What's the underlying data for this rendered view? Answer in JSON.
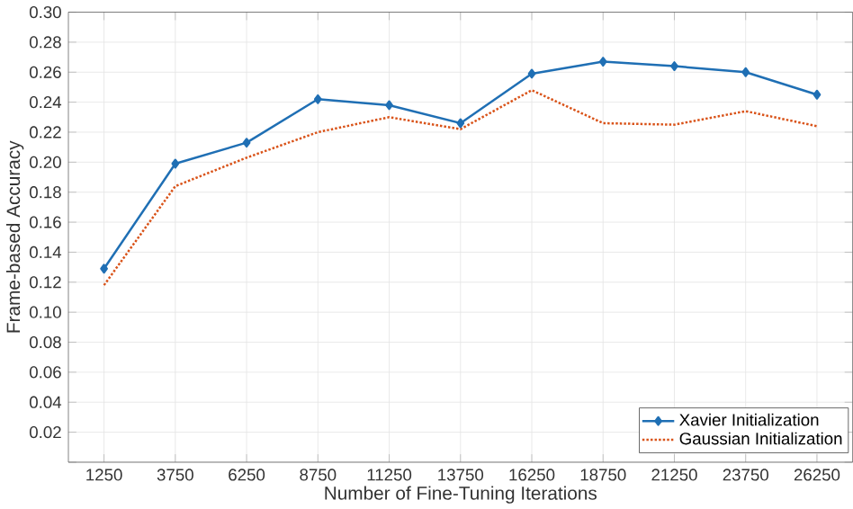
{
  "chart_data": {
    "type": "line",
    "xlabel": "Number of Fine-Tuning Iterations",
    "ylabel": "Frame-based Accuracy",
    "x": [
      1250,
      3750,
      6250,
      8750,
      11250,
      13750,
      16250,
      18750,
      21250,
      23750,
      26250
    ],
    "series": [
      {
        "name": "Xavier Initialization",
        "color": "#1f6fb4",
        "marker": "diamond",
        "line_style": "solid",
        "values": [
          0.129,
          0.199,
          0.213,
          0.242,
          0.238,
          0.226,
          0.259,
          0.267,
          0.264,
          0.26,
          0.245
        ]
      },
      {
        "name": "Gaussian Initialization",
        "color": "#d95319",
        "marker": "none",
        "line_style": "dotted",
        "values": [
          0.118,
          0.184,
          0.203,
          0.22,
          0.23,
          0.222,
          0.248,
          0.226,
          0.225,
          0.234,
          0.224
        ]
      }
    ],
    "xlim": [
      0,
      27500
    ],
    "ylim": [
      0,
      0.3
    ],
    "xticks": [
      1250,
      3750,
      6250,
      8750,
      11250,
      13750,
      16250,
      18750,
      21250,
      23750,
      26250
    ],
    "yticks": [
      {
        "value": 0,
        "label": null
      },
      {
        "value": 0.02,
        "label": "0.02"
      },
      {
        "value": 0.04,
        "label": "0.04"
      },
      {
        "value": 0.06,
        "label": "0.06"
      },
      {
        "value": 0.08,
        "label": "0.08"
      },
      {
        "value": 0.1,
        "label": "0.10"
      },
      {
        "value": 0.12,
        "label": "0.12"
      },
      {
        "value": 0.14,
        "label": "0.14"
      },
      {
        "value": 0.16,
        "label": "0.16"
      },
      {
        "value": 0.18,
        "label": "0.18"
      },
      {
        "value": 0.2,
        "label": "0.20"
      },
      {
        "value": 0.22,
        "label": "0.22"
      },
      {
        "value": 0.24,
        "label": "0.24"
      },
      {
        "value": 0.26,
        "label": "0.26"
      },
      {
        "value": 0.28,
        "label": "0.28"
      },
      {
        "value": 0.3,
        "label": "0.30"
      }
    ],
    "grid": true,
    "legend": "bottom right"
  }
}
